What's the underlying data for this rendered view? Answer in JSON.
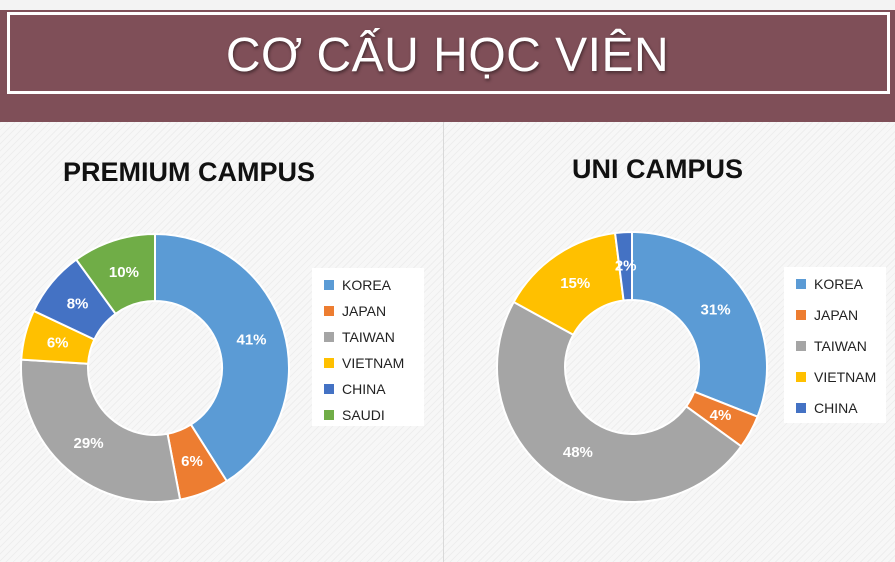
{
  "header": {
    "title": "CƠ CẤU HỌC VIÊN"
  },
  "colors": {
    "banner": "#7f4f58",
    "KOREA": "#5b9bd5",
    "JAPAN": "#ed7d31",
    "TAIWAN": "#a5a5a5",
    "VIETNAM": "#ffc000",
    "CHINA": "#4472c4",
    "SAUDI": "#70ad47"
  },
  "chart_data": [
    {
      "type": "pie",
      "style": "donut",
      "title": "PREMIUM CAMPUS",
      "categories": [
        "KOREA",
        "JAPAN",
        "TAIWAN",
        "VIETNAM",
        "CHINA",
        "SAUDI"
      ],
      "values": [
        41,
        6,
        29,
        6,
        8,
        10
      ],
      "data_labels": [
        "41%",
        "6%",
        "29%",
        "6%",
        "8%",
        "10%"
      ],
      "legend": {
        "position": "right",
        "entries": [
          "KOREA",
          "JAPAN",
          "TAIWAN",
          "VIETNAM",
          "CHINA",
          "SAUDI"
        ]
      }
    },
    {
      "type": "pie",
      "style": "donut",
      "title": "UNI CAMPUS",
      "categories": [
        "KOREA",
        "JAPAN",
        "TAIWAN",
        "VIETNAM",
        "CHINA"
      ],
      "values": [
        31,
        4,
        48,
        15,
        2
      ],
      "data_labels": [
        "31%",
        "4%",
        "48%",
        "15%",
        "2%"
      ],
      "legend": {
        "position": "right",
        "entries": [
          "KOREA",
          "JAPAN",
          "TAIWAN",
          "VIETNAM",
          "CHINA"
        ]
      }
    }
  ]
}
